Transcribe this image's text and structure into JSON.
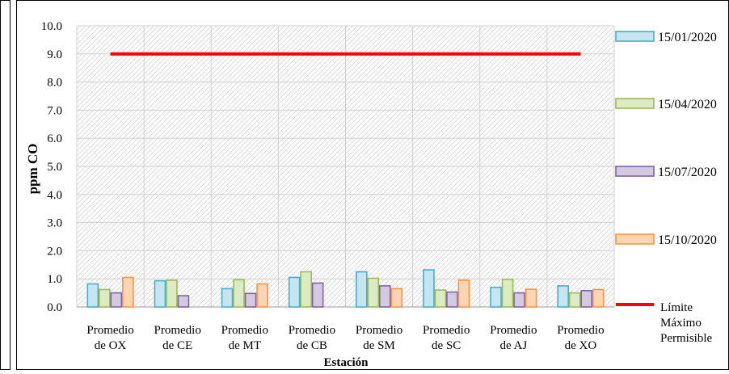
{
  "chart_data": {
    "type": "bar",
    "title": "",
    "xlabel": "Estación",
    "ylabel": "ppm CO",
    "ylim": [
      0,
      10
    ],
    "yticks": [
      "0.0",
      "1.0",
      "2.0",
      "3.0",
      "4.0",
      "5.0",
      "6.0",
      "7.0",
      "8.0",
      "9.0",
      "10.0"
    ],
    "grid": true,
    "legend_position": "right",
    "categories": [
      [
        "Promedio",
        "de OX"
      ],
      [
        "Promedio",
        "de CE"
      ],
      [
        "Promedio",
        "de MT"
      ],
      [
        "Promedio",
        "de CB"
      ],
      [
        "Promedio",
        "de SM"
      ],
      [
        "Promedio",
        "de SC"
      ],
      [
        "Promedio",
        "de AJ"
      ],
      [
        "Promedio",
        "de XO"
      ]
    ],
    "series": [
      {
        "name": "15/01/2020",
        "color": "#4BACC6",
        "fill": "#C5E6F0",
        "values": [
          0.82,
          0.93,
          0.65,
          1.05,
          1.25,
          1.32,
          0.7,
          0.75
        ]
      },
      {
        "name": "15/04/2020",
        "color": "#9BBB59",
        "fill": "#DDEBC4",
        "values": [
          0.62,
          0.95,
          0.97,
          1.25,
          1.02,
          0.6,
          0.98,
          0.5
        ]
      },
      {
        "name": "15/07/2020",
        "color": "#8064A2",
        "fill": "#D3CAE2",
        "values": [
          0.5,
          0.4,
          0.48,
          0.85,
          0.75,
          0.53,
          0.5,
          0.58
        ]
      },
      {
        "name": "15/10/2020",
        "color": "#F79646",
        "fill": "#FCD5B5",
        "values": [
          1.05,
          null,
          0.82,
          null,
          0.65,
          0.95,
          0.63,
          0.62
        ]
      }
    ],
    "reference_line": {
      "name": [
        "Límite",
        "Máximo",
        "Permisible"
      ],
      "value": 9.0,
      "color": "#FF0000"
    }
  }
}
